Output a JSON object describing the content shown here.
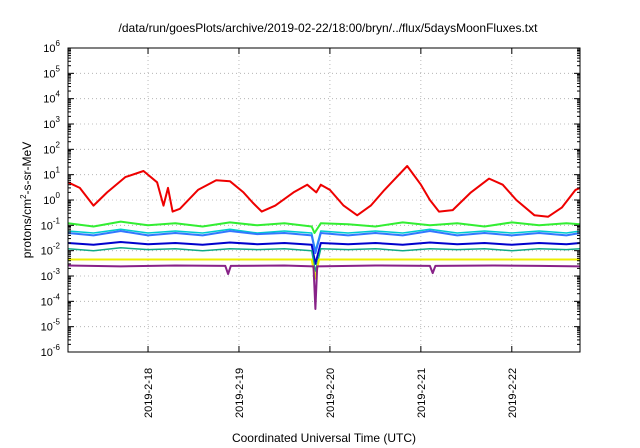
{
  "chart_data": {
    "type": "line",
    "title": "/data/run/goesPlots/archive/2019-02-22/18:00/bryn/../flux/5daysMoonFluxes.txt",
    "xlabel": "Coordinated Universal Time (UTC)",
    "ylabel_parts": [
      "protons/cm",
      "2",
      "-s-sr-MeV"
    ],
    "y_scale": "log",
    "ylim": [
      1e-06,
      1000000
    ],
    "y_ticks": [
      {
        "mant": "10",
        "exp": "-6",
        "value": 1e-06
      },
      {
        "mant": "10",
        "exp": "-5",
        "value": 1e-05
      },
      {
        "mant": "10",
        "exp": "-4",
        "value": 0.0001
      },
      {
        "mant": "10",
        "exp": "-3",
        "value": 0.001
      },
      {
        "mant": "10",
        "exp": "-2",
        "value": 0.01
      },
      {
        "mant": "10",
        "exp": "-1",
        "value": 0.1
      },
      {
        "mant": "10",
        "exp": "0",
        "value": 1
      },
      {
        "mant": "10",
        "exp": "1",
        "value": 10
      },
      {
        "mant": "10",
        "exp": "2",
        "value": 100
      },
      {
        "mant": "10",
        "exp": "3",
        "value": 1000
      },
      {
        "mant": "10",
        "exp": "4",
        "value": 10000
      },
      {
        "mant": "10",
        "exp": "5",
        "value": 100000
      },
      {
        "mant": "10",
        "exp": "6",
        "value": 1000000
      }
    ],
    "x_unit": "days",
    "xlim": [
      -0.88,
      4.75
    ],
    "x_ticks": [
      {
        "label": "2019-2-18",
        "value": 0
      },
      {
        "label": "2019-2-19",
        "value": 1
      },
      {
        "label": "2019-2-20",
        "value": 2
      },
      {
        "label": "2019-2-21",
        "value": 3
      },
      {
        "label": "2019-2-22",
        "value": 4
      }
    ],
    "grid": true,
    "series": [
      {
        "color": "#ee0000",
        "width": 2,
        "points": [
          [
            -0.88,
            5
          ],
          [
            -0.75,
            3
          ],
          [
            -0.6,
            0.6
          ],
          [
            -0.45,
            2
          ],
          [
            -0.25,
            8
          ],
          [
            -0.05,
            14
          ],
          [
            0.1,
            5
          ],
          [
            0.17,
            0.6
          ],
          [
            0.22,
            3
          ],
          [
            0.27,
            0.35
          ],
          [
            0.35,
            0.45
          ],
          [
            0.55,
            2.5
          ],
          [
            0.75,
            6
          ],
          [
            0.9,
            5.5
          ],
          [
            1.05,
            2
          ],
          [
            1.15,
            0.8
          ],
          [
            1.25,
            0.35
          ],
          [
            1.4,
            0.6
          ],
          [
            1.6,
            2
          ],
          [
            1.75,
            4
          ],
          [
            1.85,
            2
          ],
          [
            1.9,
            4
          ],
          [
            2.0,
            2.5
          ],
          [
            2.15,
            0.6
          ],
          [
            2.3,
            0.25
          ],
          [
            2.45,
            0.6
          ],
          [
            2.6,
            2.5
          ],
          [
            2.7,
            6
          ],
          [
            2.85,
            22
          ],
          [
            3.0,
            4
          ],
          [
            3.1,
            1
          ],
          [
            3.2,
            0.35
          ],
          [
            3.35,
            0.4
          ],
          [
            3.55,
            2
          ],
          [
            3.75,
            7
          ],
          [
            3.9,
            4
          ],
          [
            4.05,
            1
          ],
          [
            4.25,
            0.25
          ],
          [
            4.4,
            0.22
          ],
          [
            4.55,
            0.5
          ],
          [
            4.7,
            2.5
          ],
          [
            4.75,
            3
          ]
        ]
      },
      {
        "color": "#33ee33",
        "width": 2,
        "points": [
          [
            -0.88,
            0.12
          ],
          [
            -0.6,
            0.09
          ],
          [
            -0.3,
            0.14
          ],
          [
            0,
            0.1
          ],
          [
            0.3,
            0.12
          ],
          [
            0.6,
            0.09
          ],
          [
            0.9,
            0.13
          ],
          [
            1.2,
            0.1
          ],
          [
            1.5,
            0.12
          ],
          [
            1.8,
            0.09
          ],
          [
            1.83,
            0.05
          ],
          [
            1.9,
            0.12
          ],
          [
            2.2,
            0.11
          ],
          [
            2.5,
            0.09
          ],
          [
            2.8,
            0.13
          ],
          [
            3.1,
            0.1
          ],
          [
            3.4,
            0.12
          ],
          [
            3.7,
            0.09
          ],
          [
            4.0,
            0.13
          ],
          [
            4.3,
            0.1
          ],
          [
            4.6,
            0.12
          ],
          [
            4.75,
            0.11
          ]
        ]
      },
      {
        "color": "#00cccc",
        "width": 1.5,
        "points": [
          [
            -0.88,
            0.06
          ],
          [
            -0.6,
            0.05
          ],
          [
            -0.3,
            0.07
          ],
          [
            0,
            0.05
          ],
          [
            0.3,
            0.06
          ],
          [
            0.6,
            0.05
          ],
          [
            0.9,
            0.07
          ],
          [
            1.2,
            0.05
          ],
          [
            1.5,
            0.06
          ],
          [
            1.8,
            0.05
          ],
          [
            1.84,
            0.01
          ],
          [
            1.9,
            0.06
          ],
          [
            2.2,
            0.05
          ],
          [
            2.5,
            0.06
          ],
          [
            2.8,
            0.05
          ],
          [
            3.1,
            0.07
          ],
          [
            3.4,
            0.05
          ],
          [
            3.7,
            0.06
          ],
          [
            4.0,
            0.05
          ],
          [
            4.3,
            0.06
          ],
          [
            4.6,
            0.05
          ],
          [
            4.75,
            0.06
          ]
        ]
      },
      {
        "color": "#3377ff",
        "width": 2,
        "points": [
          [
            -0.88,
            0.05
          ],
          [
            -0.6,
            0.04
          ],
          [
            -0.3,
            0.06
          ],
          [
            0,
            0.04
          ],
          [
            0.3,
            0.05
          ],
          [
            0.6,
            0.04
          ],
          [
            0.9,
            0.06
          ],
          [
            1.2,
            0.045
          ],
          [
            1.5,
            0.05
          ],
          [
            1.8,
            0.04
          ],
          [
            1.84,
            0.008
          ],
          [
            1.9,
            0.05
          ],
          [
            2.2,
            0.04
          ],
          [
            2.5,
            0.05
          ],
          [
            2.8,
            0.04
          ],
          [
            3.1,
            0.06
          ],
          [
            3.4,
            0.04
          ],
          [
            3.7,
            0.05
          ],
          [
            4.0,
            0.04
          ],
          [
            4.3,
            0.05
          ],
          [
            4.6,
            0.04
          ],
          [
            4.75,
            0.05
          ]
        ]
      },
      {
        "color": "#0000cc",
        "width": 2,
        "points": [
          [
            -0.88,
            0.02
          ],
          [
            -0.6,
            0.017
          ],
          [
            -0.3,
            0.022
          ],
          [
            0,
            0.018
          ],
          [
            0.3,
            0.02
          ],
          [
            0.6,
            0.017
          ],
          [
            0.9,
            0.021
          ],
          [
            1.2,
            0.018
          ],
          [
            1.5,
            0.02
          ],
          [
            1.8,
            0.017
          ],
          [
            1.84,
            0.003
          ],
          [
            1.9,
            0.02
          ],
          [
            2.2,
            0.018
          ],
          [
            2.5,
            0.02
          ],
          [
            2.8,
            0.017
          ],
          [
            3.1,
            0.021
          ],
          [
            3.4,
            0.018
          ],
          [
            3.7,
            0.02
          ],
          [
            4.0,
            0.017
          ],
          [
            4.3,
            0.02
          ],
          [
            4.6,
            0.018
          ],
          [
            4.75,
            0.02
          ]
        ]
      },
      {
        "color": "#11aa88",
        "width": 1.5,
        "points": [
          [
            -0.88,
            0.012
          ],
          [
            -0.6,
            0.01
          ],
          [
            -0.3,
            0.013
          ],
          [
            0,
            0.011
          ],
          [
            0.3,
            0.012
          ],
          [
            0.6,
            0.01
          ],
          [
            0.9,
            0.012
          ],
          [
            1.2,
            0.011
          ],
          [
            1.5,
            0.012
          ],
          [
            1.8,
            0.01
          ],
          [
            1.84,
            0.0015
          ],
          [
            1.9,
            0.012
          ],
          [
            2.2,
            0.011
          ],
          [
            2.5,
            0.012
          ],
          [
            2.8,
            0.01
          ],
          [
            3.1,
            0.012
          ],
          [
            3.4,
            0.011
          ],
          [
            3.7,
            0.012
          ],
          [
            4.0,
            0.01
          ],
          [
            4.3,
            0.012
          ],
          [
            4.6,
            0.011
          ],
          [
            4.75,
            0.012
          ]
        ]
      },
      {
        "color": "#eeee00",
        "width": 2,
        "points": [
          [
            -0.88,
            0.0045
          ],
          [
            0,
            0.0045
          ],
          [
            1,
            0.0045
          ],
          [
            1.8,
            0.0045
          ],
          [
            1.84,
            0.0008
          ],
          [
            1.88,
            0.0045
          ],
          [
            3,
            0.0045
          ],
          [
            4,
            0.0045
          ],
          [
            4.75,
            0.0045
          ]
        ]
      },
      {
        "color": "#882288",
        "width": 2,
        "points": [
          [
            -0.88,
            0.0026
          ],
          [
            -0.3,
            0.0024
          ],
          [
            0.3,
            0.0026
          ],
          [
            0.85,
            0.0025
          ],
          [
            0.88,
            0.0012
          ],
          [
            0.91,
            0.0025
          ],
          [
            1.5,
            0.0026
          ],
          [
            1.82,
            0.0024
          ],
          [
            1.84,
            5e-05
          ],
          [
            1.86,
            0.0024
          ],
          [
            2.5,
            0.0026
          ],
          [
            3.1,
            0.0025
          ],
          [
            3.13,
            0.0013
          ],
          [
            3.16,
            0.0025
          ],
          [
            3.8,
            0.0026
          ],
          [
            4.3,
            0.0025
          ],
          [
            4.75,
            0.0024
          ]
        ]
      }
    ]
  }
}
